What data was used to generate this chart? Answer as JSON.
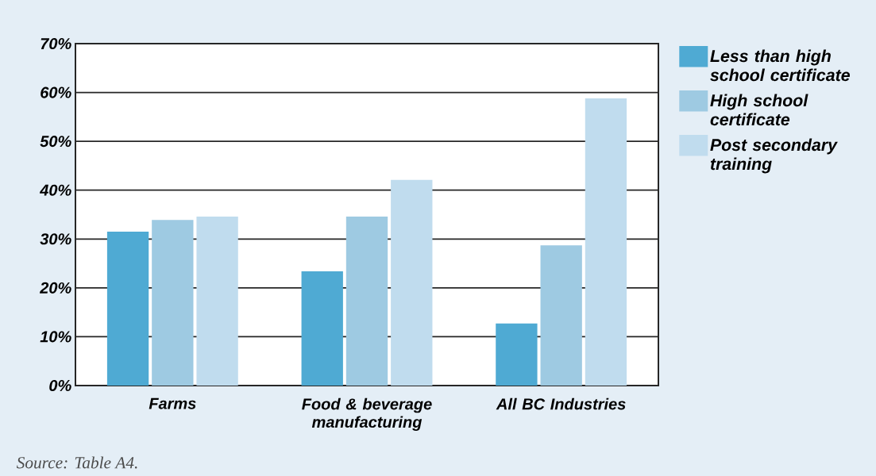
{
  "chart_data": {
    "type": "bar",
    "categories": [
      "Farms",
      "Food & beverage manufacturing",
      "All BC Industries"
    ],
    "series": [
      {
        "name": "Less than high school certificate",
        "color": "#4faad3",
        "values": [
          31.5,
          23.4,
          12.7
        ]
      },
      {
        "name": "High school certificate",
        "color": "#9ecae2",
        "values": [
          33.9,
          34.6,
          28.7
        ]
      },
      {
        "name": "Post secondary training",
        "color": "#c0dcee",
        "values": [
          34.6,
          42.1,
          58.8
        ]
      }
    ],
    "ylim": [
      0,
      70
    ],
    "yticks": [
      {
        "value": 0,
        "label": "0%"
      },
      {
        "value": 10,
        "label": "10%"
      },
      {
        "value": 20,
        "label": "20%"
      },
      {
        "value": 30,
        "label": "30%"
      },
      {
        "value": 40,
        "label": "40%"
      },
      {
        "value": 50,
        "label": "50%"
      },
      {
        "value": 60,
        "label": "60%"
      },
      {
        "value": 70,
        "label": "70%"
      }
    ],
    "grid": "y",
    "legend": "top right",
    "annotations": [
      "Source: Table A4."
    ]
  }
}
